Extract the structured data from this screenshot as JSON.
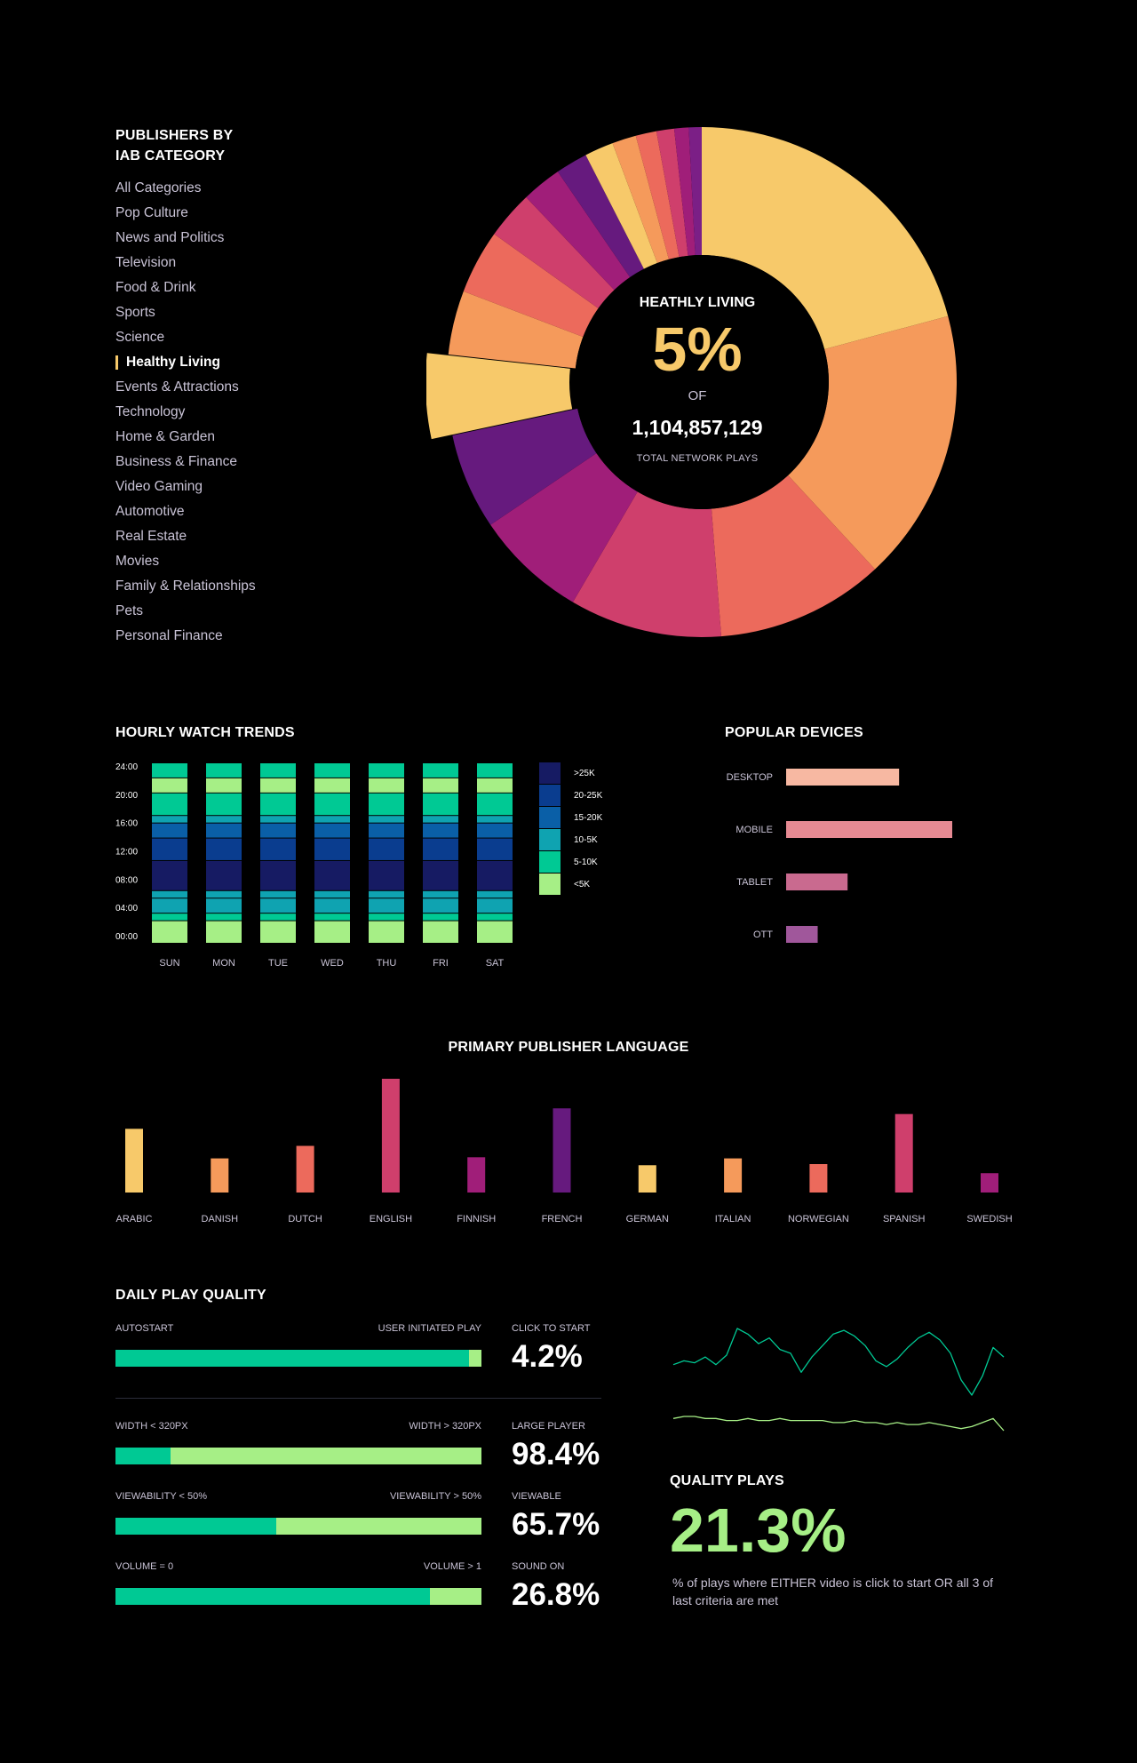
{
  "categories": {
    "title_line1": "PUBLISHERS BY",
    "title_line2": "IAB CATEGORY",
    "items": [
      "All Categories",
      "Pop Culture",
      "News and Politics",
      "Television",
      "Food & Drink",
      "Sports",
      "Science",
      "Healthy Living",
      "Events & Attractions",
      "Technology",
      "Home & Garden",
      "Business & Finance",
      "Video Gaming",
      "Automotive",
      "Real Estate",
      "Movies",
      "Family & Relationships",
      "Pets",
      "Personal Finance"
    ],
    "active_index": 7
  },
  "donut_center": {
    "label": "HEATHLY LIVING",
    "percent": "5%",
    "of": "OF",
    "total": "1,104,857,129",
    "sub": "TOTAL NETWORK PLAYS"
  },
  "colors": {
    "palette": [
      "#f7c96a",
      "#f59a5b",
      "#ec6a5c",
      "#cf3f6c",
      "#a01e79",
      "#661a7e",
      "#ff0000"
    ],
    "heat": [
      "#a6ef86",
      "#00c994",
      "#0fa3b1",
      "#0a5fa7",
      "#0a3d8f",
      "#161b63"
    ],
    "devices": [
      "#f7b8a2",
      "#e68a93",
      "#c96a8f",
      "#a0579b"
    ],
    "autostart": "#00c994",
    "user": "#a6ef86"
  },
  "chart_data": [
    {
      "type": "pie",
      "title": "PUBLISHERS BY IAB CATEGORY",
      "highlighted": "Healthy Living",
      "slices": [
        {
          "label": "Pop Culture",
          "value": 20.5
        },
        {
          "label": "News and Politics",
          "value": 17.0
        },
        {
          "label": "Television",
          "value": 10.5
        },
        {
          "label": "Food & Drink",
          "value": 9.5
        },
        {
          "label": "Sports",
          "value": 7.0
        },
        {
          "label": "Science",
          "value": 6.0
        },
        {
          "label": "Healthy Living",
          "value": 5.0
        },
        {
          "label": "Events & Attractions",
          "value": 4.0
        },
        {
          "label": "Technology",
          "value": 4.0
        },
        {
          "label": "Home & Garden",
          "value": 3.0
        },
        {
          "label": "Business & Finance",
          "value": 2.5
        },
        {
          "label": "Video Gaming",
          "value": 2.0
        },
        {
          "label": "Automotive",
          "value": 1.8
        },
        {
          "label": "Real Estate",
          "value": 1.5
        },
        {
          "label": "Movies",
          "value": 1.3
        },
        {
          "label": "Family & Relationships",
          "value": 1.1
        },
        {
          "label": "Pets",
          "value": 0.9
        },
        {
          "label": "Personal Finance",
          "value": 0.8
        }
      ]
    },
    {
      "type": "heatmap",
      "title": "HOURLY WATCH TRENDS",
      "days": [
        "SUN",
        "MON",
        "TUE",
        "WED",
        "THU",
        "FRI",
        "SAT"
      ],
      "y_ticks": [
        "24:00",
        "20:00",
        "16:00",
        "12:00",
        "08:00",
        "04:00",
        "00:00"
      ],
      "legend": [
        ">25K",
        "20-25K",
        "15-20K",
        "10-5K",
        "5-10K",
        "<5K"
      ],
      "bands": [
        {
          "from": 0,
          "to": 3,
          "level": 0
        },
        {
          "from": 3,
          "to": 4,
          "level": 1
        },
        {
          "from": 4,
          "to": 6,
          "level": 2
        },
        {
          "from": 6,
          "to": 7,
          "level": 2
        },
        {
          "from": 7,
          "to": 11,
          "level": 5
        },
        {
          "from": 11,
          "to": 14,
          "level": 4
        },
        {
          "from": 14,
          "to": 16,
          "level": 3
        },
        {
          "from": 16,
          "to": 17,
          "level": 2
        },
        {
          "from": 17,
          "to": 20,
          "level": 1
        },
        {
          "from": 20,
          "to": 22,
          "level": 0
        },
        {
          "from": 22,
          "to": 24,
          "level": 1
        }
      ]
    },
    {
      "type": "bar",
      "orientation": "horizontal",
      "title": "POPULAR DEVICES",
      "categories": [
        "DESKTOP",
        "MOBILE",
        "TABLET",
        "OTT"
      ],
      "values": [
        68,
        100,
        37,
        19
      ]
    },
    {
      "type": "bar",
      "title": "PRIMARY PUBLISHER LANGUAGE",
      "categories": [
        "ARABIC",
        "DANISH",
        "DUTCH",
        "ENGLISH",
        "FINNISH",
        "FRENCH",
        "GERMAN",
        "ITALIAN",
        "NORWEGIAN",
        "SPANISH",
        "SWEDISH"
      ],
      "values": [
        56,
        30,
        41,
        100,
        31,
        74,
        24,
        30,
        25,
        69,
        17
      ]
    },
    {
      "type": "line",
      "title": "QUALITY PLAYS",
      "series": [
        {
          "name": "click to start",
          "values": [
            3,
            3.2,
            3.1,
            3.4,
            3,
            3.5,
            4.9,
            4.6,
            4.1,
            4.4,
            3.8,
            3.6,
            2.6,
            3.4,
            4,
            4.6,
            4.8,
            4.5,
            4,
            3.2,
            2.9,
            3.3,
            3.9,
            4.4,
            4.7,
            4.3,
            3.6,
            2.2,
            1.4,
            2.4,
            3.9,
            3.4
          ]
        },
        {
          "name": "quality",
          "values": [
            3.6,
            3.7,
            3.7,
            3.6,
            3.6,
            3.5,
            3.5,
            3.6,
            3.5,
            3.5,
            3.6,
            3.5,
            3.5,
            3.5,
            3.5,
            3.4,
            3.4,
            3.5,
            3.4,
            3.4,
            3.3,
            3.4,
            3.3,
            3.3,
            3.4,
            3.3,
            3.2,
            3.1,
            3.2,
            3.4,
            3.6,
            3.0
          ]
        }
      ]
    }
  ],
  "hourly": {
    "title": "HOURLY WATCH TRENDS"
  },
  "devices": {
    "title": "POPULAR DEVICES"
  },
  "language": {
    "title": "PRIMARY PUBLISHER LANGUAGE"
  },
  "quality": {
    "title": "DAILY PLAY QUALITY",
    "rows": [
      {
        "left": "AUTOSTART",
        "right": "USER INITIATED PLAY",
        "fill": 96.5,
        "metric": "CLICK TO START",
        "value": "4.2%"
      },
      {
        "left": "WIDTH < 320PX",
        "right": "WIDTH > 320PX",
        "fill": 15,
        "metric": "LARGE PLAYER",
        "value": "98.4%"
      },
      {
        "left": "VIEWABILITY < 50%",
        "right": "VIEWABILITY > 50%",
        "fill": 44,
        "metric": "VIEWABLE",
        "value": "65.7%"
      },
      {
        "left": "VOLUME = 0",
        "right": "VOLUME > 1",
        "fill": 86,
        "metric": "SOUND ON",
        "value": "26.8%"
      }
    ],
    "qp_title": "QUALITY PLAYS",
    "qp_value": "21.3%",
    "qp_desc": "% of plays where EITHER video is click to start OR all 3 of last criteria are met"
  }
}
